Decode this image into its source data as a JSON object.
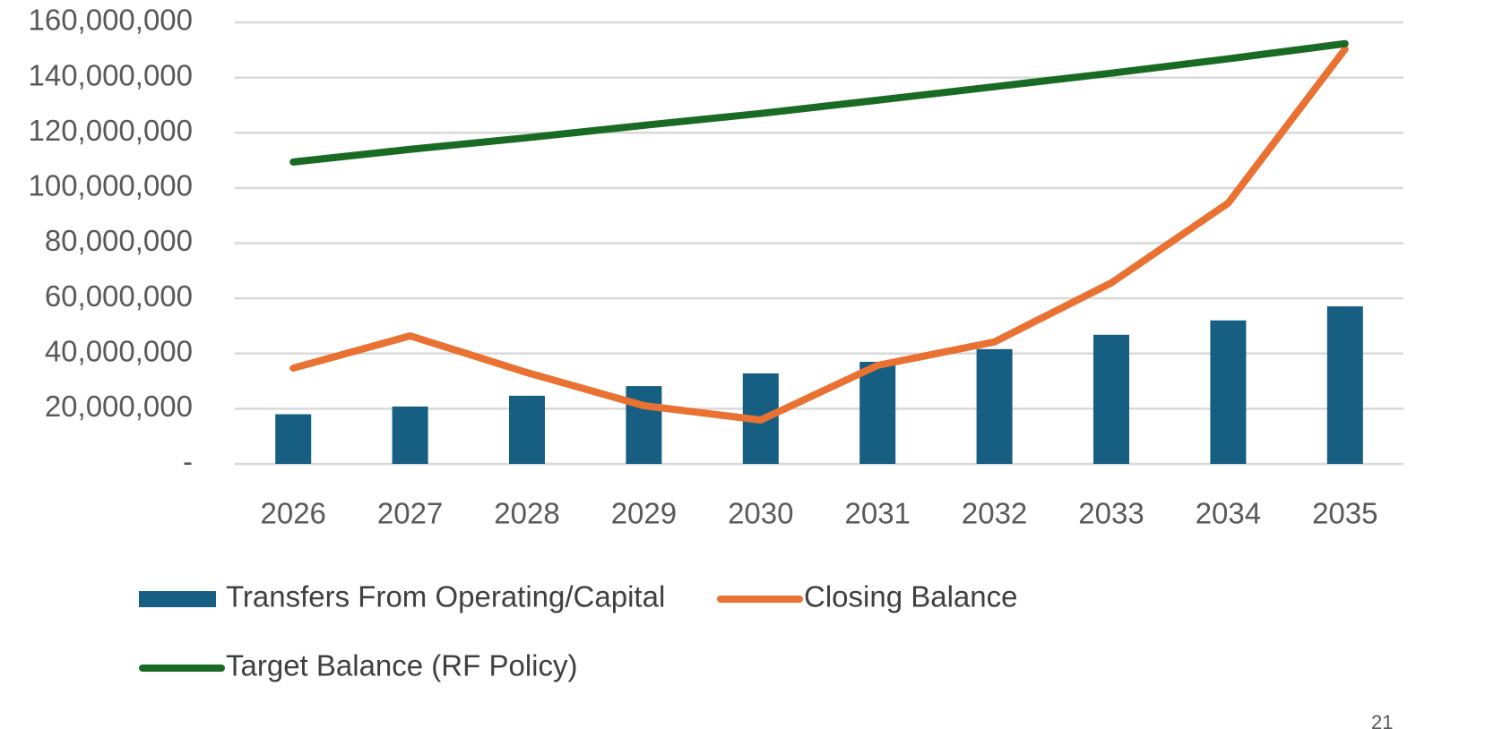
{
  "chart_data": {
    "type": "combo",
    "categories": [
      "2026",
      "2027",
      "2028",
      "2029",
      "2030",
      "2031",
      "2032",
      "2033",
      "2034",
      "2035"
    ],
    "series": [
      {
        "name": "Transfers From Operating/Capital",
        "type": "bar",
        "color": "#175f82",
        "values": [
          18000000,
          20800000,
          24700000,
          28200000,
          32800000,
          37000000,
          41600000,
          46800000,
          52000000,
          57100000
        ]
      },
      {
        "name": "Closing Balance",
        "type": "line",
        "color": "#e97132",
        "values": [
          34700000,
          46400000,
          33100000,
          21100000,
          15900000,
          35700000,
          44200000,
          65600000,
          94500000,
          150300000
        ]
      },
      {
        "name": "Target Balance (RF Policy)",
        "type": "line",
        "color": "#196b24",
        "values": [
          109400000,
          114000000,
          118200000,
          122700000,
          127000000,
          131800000,
          136700000,
          141600000,
          146800000,
          152300000
        ]
      }
    ],
    "ylim": [
      0,
      160000000
    ],
    "yticks": [
      {
        "value": 0,
        "label": "-"
      },
      {
        "value": 20000000,
        "label": "20,000,000"
      },
      {
        "value": 40000000,
        "label": "40,000,000"
      },
      {
        "value": 60000000,
        "label": "60,000,000"
      },
      {
        "value": 80000000,
        "label": "80,000,000"
      },
      {
        "value": 100000000,
        "label": "100,000,000"
      },
      {
        "value": 120000000,
        "label": "120,000,000"
      },
      {
        "value": 140000000,
        "label": "140,000,000"
      },
      {
        "value": 160000000,
        "label": "160,000,000"
      }
    ],
    "grid": true,
    "legend": "bottom",
    "page_number": "21"
  }
}
